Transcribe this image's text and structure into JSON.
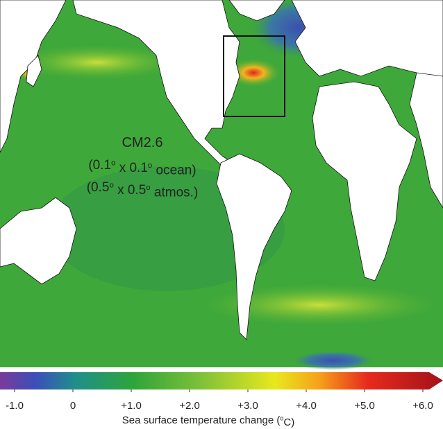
{
  "map": {
    "annotation": {
      "line1": "CM2.6",
      "line2": [
        "(0.1",
        "o",
        " x 0.1",
        "o",
        " ocean)"
      ],
      "line3": [
        "(0.5",
        "o",
        " x 0.5",
        "o",
        " atmos.)"
      ]
    },
    "colorbar": {
      "clim": [
        -1.25,
        6.25
      ],
      "extend": "max",
      "ticks": [
        {
          "value": -1,
          "label": "-1.0"
        },
        0,
        {
          "value": 1,
          "label": "+1.0"
        },
        {
          "value": 2,
          "label": "+2.0"
        },
        {
          "value": 3,
          "label": "+3.0"
        },
        {
          "value": 4,
          "label": "+4.0"
        },
        {
          "value": 5,
          "label": "+5.0"
        },
        {
          "value": 6,
          "label": "+6.0"
        }
      ],
      "label": [
        "Sea surface temperature change (",
        "o",
        "C)"
      ]
    }
  }
}
